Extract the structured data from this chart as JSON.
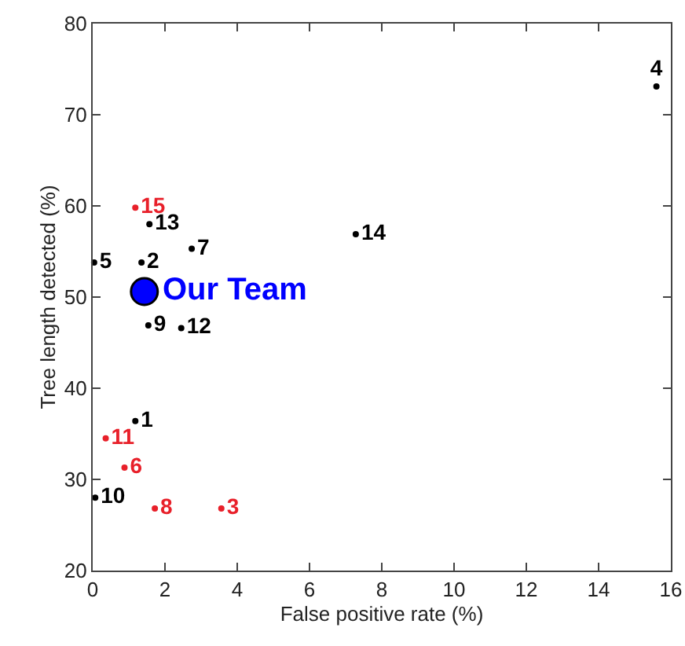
{
  "chart_data": {
    "type": "scatter",
    "xlabel": "False positive rate (%)",
    "ylabel": "Tree length detected (%)",
    "xlim": [
      0,
      16
    ],
    "xticks": [
      0,
      2,
      4,
      6,
      8,
      10,
      12,
      14,
      16
    ],
    "ylim": [
      20,
      80
    ],
    "yticks": [
      20,
      30,
      40,
      50,
      60,
      70,
      80
    ],
    "grid": false,
    "legend": false,
    "marker": "circle",
    "series": [
      {
        "name": "1",
        "color": "#000000",
        "x": [
          1.18
        ],
        "values": [
          36.4
        ]
      },
      {
        "name": "2",
        "color": "#000000",
        "x": [
          1.35
        ],
        "values": [
          53.8
        ]
      },
      {
        "name": "3",
        "color": "#e8202a",
        "x": [
          3.56
        ],
        "values": [
          26.8
        ]
      },
      {
        "name": "4",
        "color": "#000000",
        "x": [
          15.6
        ],
        "values": [
          73.1
        ]
      },
      {
        "name": "5",
        "color": "#000000",
        "x": [
          0.04
        ],
        "values": [
          53.8
        ]
      },
      {
        "name": "6",
        "color": "#e8202a",
        "x": [
          0.88
        ],
        "values": [
          31.3
        ]
      },
      {
        "name": "7",
        "color": "#000000",
        "x": [
          2.74
        ],
        "values": [
          55.3
        ]
      },
      {
        "name": "8",
        "color": "#e8202a",
        "x": [
          1.72
        ],
        "values": [
          26.8
        ]
      },
      {
        "name": "9",
        "color": "#000000",
        "x": [
          1.54
        ],
        "values": [
          46.9
        ]
      },
      {
        "name": "10",
        "color": "#000000",
        "x": [
          0.07
        ],
        "values": [
          28.0
        ]
      },
      {
        "name": "11",
        "color": "#e8202a",
        "x": [
          0.36
        ],
        "values": [
          34.5
        ]
      },
      {
        "name": "12",
        "color": "#000000",
        "x": [
          2.45
        ],
        "values": [
          46.6
        ]
      },
      {
        "name": "13",
        "color": "#000000",
        "x": [
          1.57
        ],
        "values": [
          58.0
        ]
      },
      {
        "name": "14",
        "color": "#000000",
        "x": [
          7.28
        ],
        "values": [
          56.9
        ]
      },
      {
        "name": "15",
        "color": "#e8202a",
        "x": [
          1.18
        ],
        "values": [
          59.8
        ]
      },
      {
        "name": "Our Team",
        "color": "#0000ff",
        "x": [
          1.43
        ],
        "values": [
          50.6
        ]
      }
    ]
  }
}
